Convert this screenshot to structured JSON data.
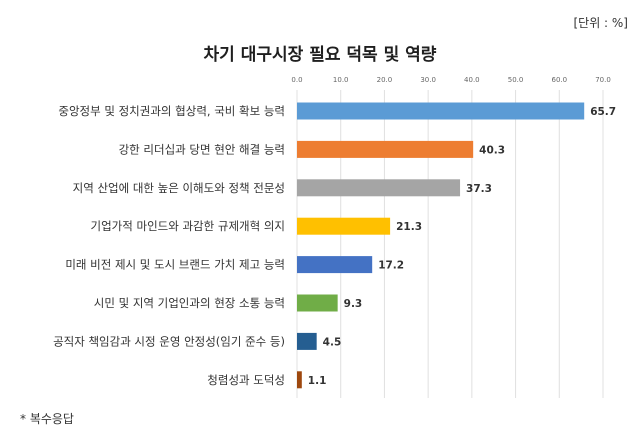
{
  "unit_label": "[단위 : %]",
  "footnote": "* 복수응답",
  "chart_data": {
    "type": "bar",
    "orientation": "horizontal",
    "title": "차기 대구시장 필요 덕목 및 역량",
    "xlabel": "",
    "ylabel": "",
    "xlim": [
      0,
      70
    ],
    "ticks": [
      "0.0",
      "10.0",
      "20.0",
      "30.0",
      "40.0",
      "50.0",
      "60.0",
      "70.0"
    ],
    "grid": true,
    "axis_position": "top",
    "categories": [
      "중앙정부 및 정치권과의 협상력, 국비 확보 능력",
      "강한 리더십과 당면 현안 해결 능력",
      "지역 산업에 대한 높은 이해도와 정책 전문성",
      "기업가적 마인드와 과감한 규제개혁 의지",
      "미래 비전 제시 및 도시 브랜드 가치 제고 능력",
      "시민 및 지역 기업인과의 현장 소통 능력",
      "공직자 책임감과 시정 운영 안정성(임기 준수 등)",
      "청렴성과 도덕성"
    ],
    "values": [
      65.7,
      40.3,
      37.3,
      21.3,
      17.2,
      9.3,
      4.5,
      1.1
    ],
    "value_labels": [
      "65.7",
      "40.3",
      "37.3",
      "21.3",
      "17.2",
      "9.3",
      "4.5",
      "1.1"
    ],
    "colors": [
      "#5b9bd5",
      "#ed7d31",
      "#a5a5a5",
      "#ffc000",
      "#4472c4",
      "#70ad47",
      "#255e91",
      "#9e480e"
    ]
  }
}
